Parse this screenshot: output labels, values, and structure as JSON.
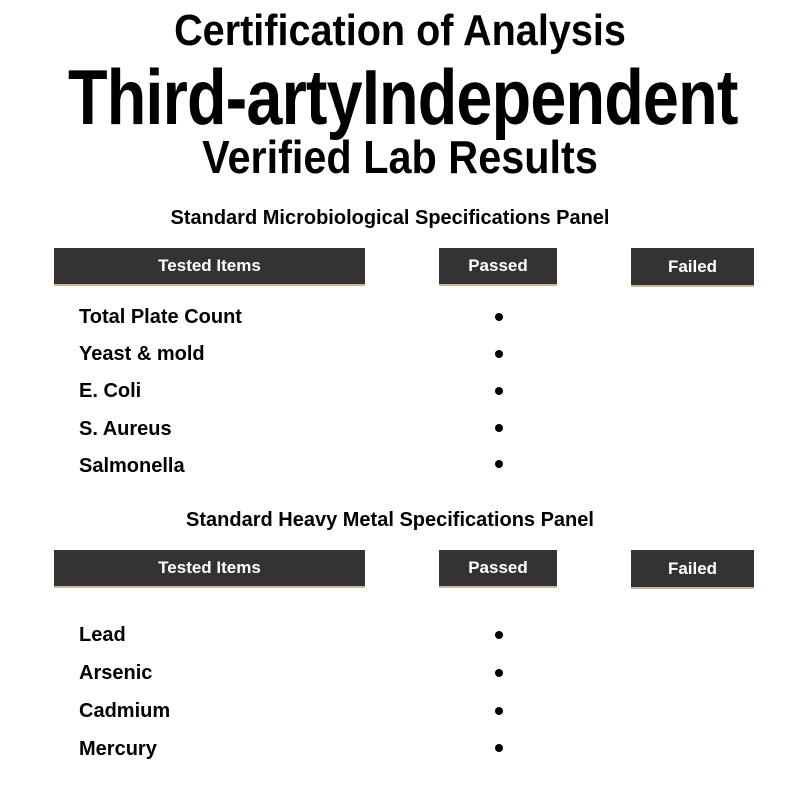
{
  "header": {
    "line1": "Certification of Analysis",
    "line2": "Third-artyIndependent",
    "line3": "Verified Lab Results"
  },
  "panels": [
    {
      "title": "Standard Microbiological Specifications Panel",
      "columns": [
        "Tested Items",
        "Passed",
        "Failed"
      ],
      "items": [
        {
          "name": "Total Plate Count",
          "result": "passed"
        },
        {
          "name": "Yeast & mold",
          "result": "passed"
        },
        {
          "name": "E. Coli",
          "result": "passed"
        },
        {
          "name": "S. Aureus",
          "result": "passed"
        },
        {
          "name": "Salmonella",
          "result": "passed"
        }
      ]
    },
    {
      "title": "Standard Heavy Metal Specifications Panel",
      "columns": [
        "Tested Items",
        "Passed",
        "Failed"
      ],
      "items": [
        {
          "name": "Lead",
          "result": "passed"
        },
        {
          "name": "Arsenic",
          "result": "passed"
        },
        {
          "name": "Cadmium",
          "result": "passed"
        },
        {
          "name": "Mercury",
          "result": "passed"
        }
      ]
    }
  ],
  "colors": {
    "header_bg": "#353331",
    "header_text": "#ffffff"
  }
}
